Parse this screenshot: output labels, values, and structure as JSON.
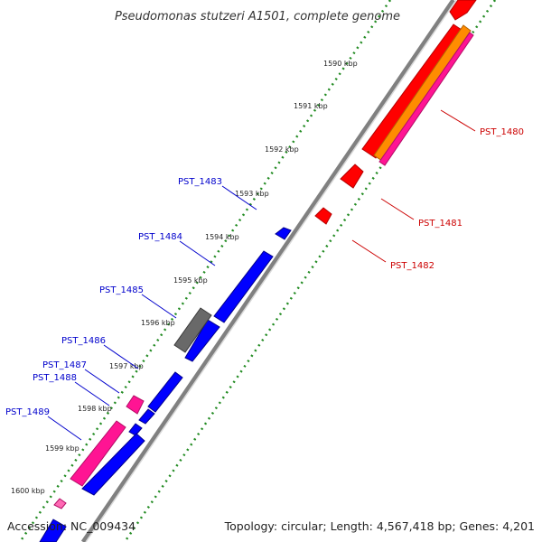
{
  "title": "Pseudomonas stutzeri A1501, complete genome",
  "footer": {
    "accession": "Accession: NC_009434",
    "topology": "Topology: circular; Length: 4,567,418 bp; Genes: 4,201"
  },
  "colors": {
    "backbone": "#808080",
    "tick_marks": "#228b22",
    "forward_label": "#cc0000",
    "reverse_label": "#0000cc",
    "red_gene": "#ff0000",
    "orange_gene": "#ff8c00",
    "pink_gene": "#ff1493",
    "blue_gene": "#0000ff",
    "gray_gene": "#696969"
  },
  "scale_labels": [
    "1590 kbp",
    "1591 kbp",
    "1592 kbp",
    "1593 kbp",
    "1594 kbp",
    "1595 kbp",
    "1596 kbp",
    "1597 kbp",
    "1598 kbp",
    "1599 kbp",
    "1600 kbp"
  ],
  "forward_genes": [
    {
      "label": "PST_1480",
      "color": "red"
    },
    {
      "label": "PST_1481",
      "color": "red"
    },
    {
      "label": "PST_1482",
      "color": "red"
    }
  ],
  "reverse_genes": [
    {
      "label": "PST_1483",
      "color": "blue"
    },
    {
      "label": "PST_1484",
      "color": "blue"
    },
    {
      "label": "PST_1485",
      "color": "gray"
    },
    {
      "label": "PST_1486",
      "color": "blue"
    },
    {
      "label": "PST_1487",
      "color": "pink"
    },
    {
      "label": "PST_1488",
      "color": "blue"
    },
    {
      "label": "PST_1489",
      "color": "pink"
    }
  ]
}
